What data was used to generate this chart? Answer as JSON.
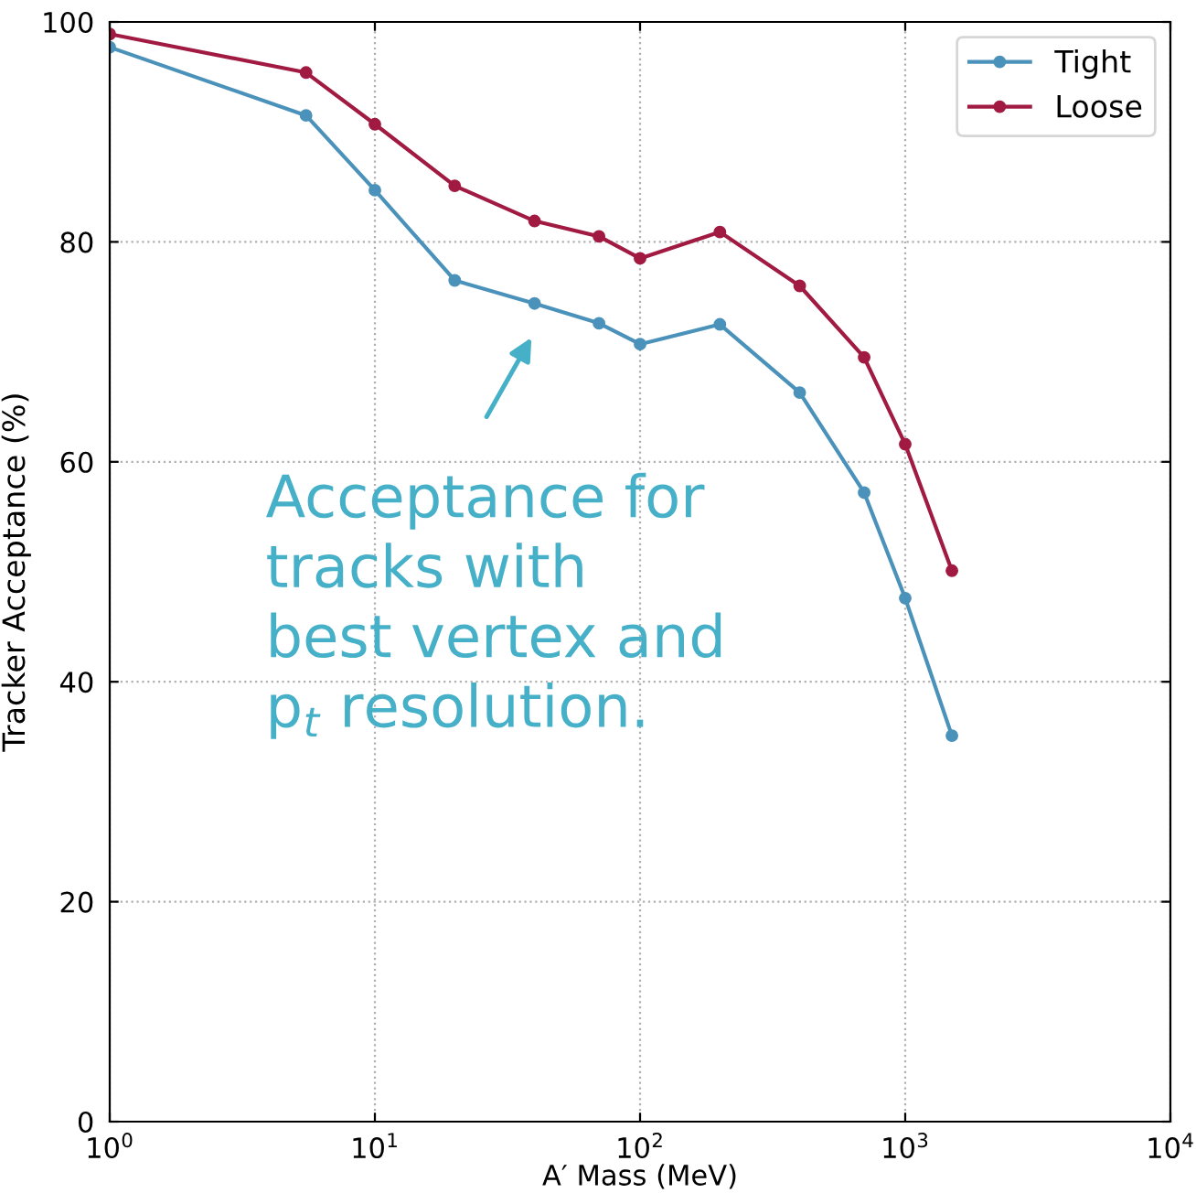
{
  "chart_data": {
    "type": "line",
    "xlabel": "A′ Mass (MeV)",
    "ylabel": "Tracker Acceptance (%)",
    "x": [
      1,
      5.5,
      10,
      20,
      40,
      70,
      100,
      200,
      400,
      700,
      1000,
      1500
    ],
    "series": [
      {
        "name": "Tight",
        "color": "#4b92bb",
        "values": [
          97.7,
          91.5,
          84.7,
          76.5,
          74.4,
          72.6,
          70.7,
          72.5,
          66.3,
          57.2,
          47.6,
          35.1
        ]
      },
      {
        "name": "Loose",
        "color": "#a11a42",
        "values": [
          98.9,
          95.4,
          90.7,
          85.1,
          81.9,
          80.5,
          78.5,
          80.9,
          76.0,
          69.5,
          61.6,
          50.1
        ]
      }
    ],
    "log": "x",
    "xlim": [
      1,
      10000
    ],
    "xticks": [
      {
        "value": 1,
        "label": "10$^{0}$"
      },
      {
        "value": 10,
        "label": "10$^{1}$"
      },
      {
        "value": 100,
        "label": "10$^{2}$"
      },
      {
        "value": 1000,
        "label": "10$^{3}$"
      },
      {
        "value": 10000,
        "label": "10$^{4}$"
      }
    ],
    "ylim": [
      0,
      100
    ],
    "yticks": [
      0,
      20,
      40,
      60,
      80,
      100
    ],
    "grid": true,
    "legend": "top right",
    "marker": "circle",
    "line_style": "solid",
    "annotations": [
      "Acceptance for\ntracks with\nbest vertex and\np$_{t}$ resolution."
    ]
  }
}
